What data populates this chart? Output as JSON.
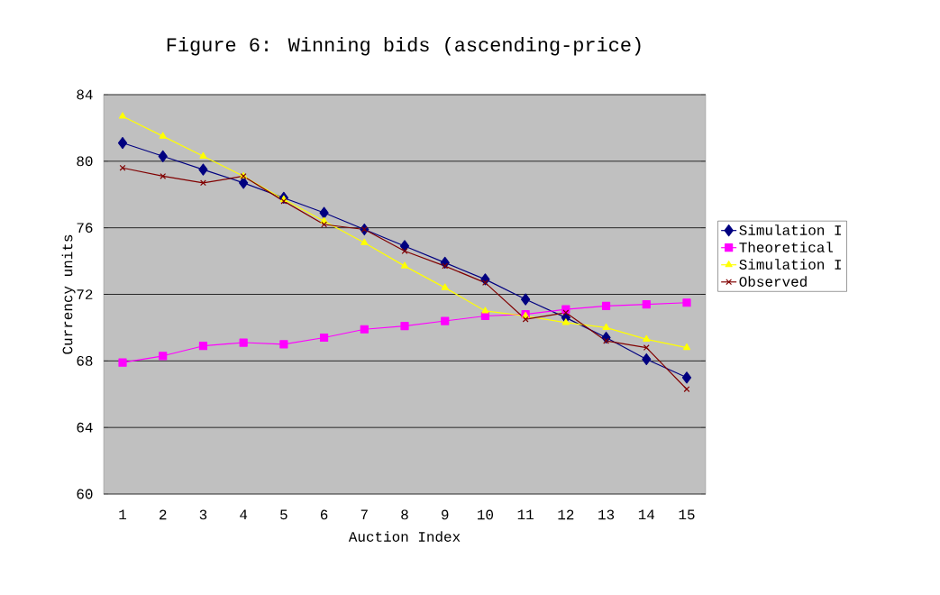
{
  "chart_data": {
    "type": "line",
    "title": "Figure 6: Winning bids (ascending-price)",
    "xlabel": "Auction Index",
    "ylabel": "Currency units",
    "categories": [
      "1",
      "2",
      "3",
      "4",
      "5",
      "6",
      "7",
      "8",
      "9",
      "10",
      "11",
      "12",
      "13",
      "14",
      "15"
    ],
    "series": [
      {
        "name": "Simulation I",
        "color": "#000080",
        "marker": "diamond",
        "values": [
          81.1,
          80.3,
          79.5,
          78.7,
          77.8,
          76.9,
          75.9,
          74.9,
          73.9,
          72.9,
          71.7,
          70.6,
          69.4,
          68.1,
          67.0
        ]
      },
      {
        "name": "Theoretical",
        "color": "#ff00ff",
        "marker": "square",
        "values": [
          67.9,
          68.3,
          68.9,
          69.1,
          69.0,
          69.4,
          69.9,
          70.1,
          70.4,
          70.7,
          70.8,
          71.1,
          71.3,
          71.4,
          71.5
        ]
      },
      {
        "name": "Simulation I",
        "color": "#ffff00",
        "marker": "triangle",
        "values": [
          82.7,
          81.5,
          80.3,
          79.1,
          77.7,
          76.4,
          75.1,
          73.7,
          72.4,
          71.0,
          70.7,
          70.3,
          70.0,
          69.3,
          68.8
        ]
      },
      {
        "name": "Observed",
        "color": "#800000",
        "marker": "cross",
        "values": [
          79.6,
          79.1,
          78.7,
          79.1,
          77.6,
          76.2,
          75.9,
          74.6,
          73.7,
          72.7,
          70.5,
          70.9,
          69.2,
          68.8,
          66.3
        ]
      }
    ],
    "ylim": [
      60,
      84
    ],
    "yticks": [
      60,
      64,
      68,
      72,
      76,
      80,
      84
    ],
    "grid": "y",
    "legend": "right"
  }
}
